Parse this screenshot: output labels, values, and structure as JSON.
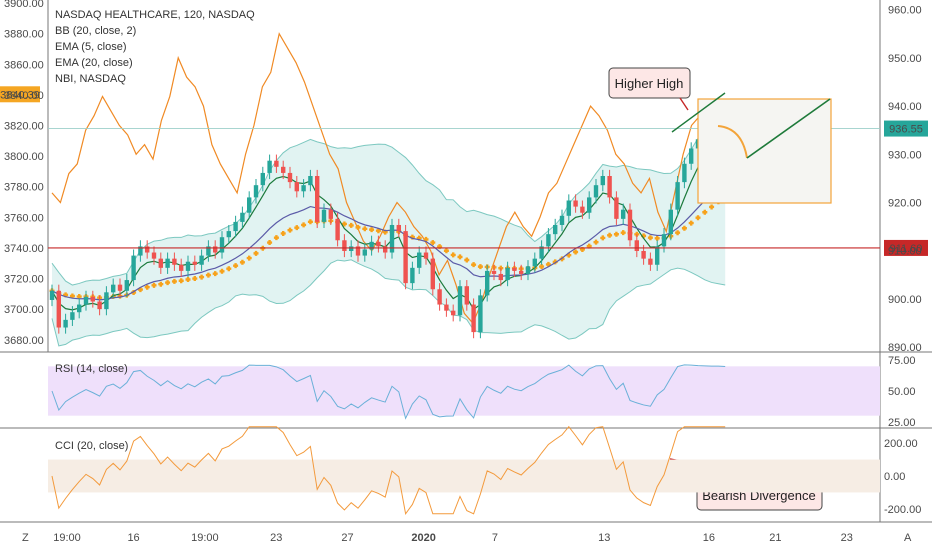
{
  "chart_data": {
    "type": "candlestick",
    "legend": [
      "NASDAQ HEALTHCARE, 120, NASDAQ",
      "BB (20, close, 2)",
      "EMA (5, close)",
      "EMA (20, close)",
      "NBI, NASDAQ"
    ],
    "left_axis": {
      "ticks": [
        3900,
        3880,
        3860,
        3840,
        3820,
        3800,
        3780,
        3760,
        3740,
        3720,
        3700,
        3680
      ],
      "labels": [
        "3900.00",
        "3880.00",
        "3860.00",
        "3840.00",
        "3820.00",
        "3800.00",
        "3780.00",
        "3760.00",
        "3740.00",
        "3720.00",
        "3700.00",
        "3680.00"
      ],
      "range": [
        3672,
        3902
      ]
    },
    "right_axis": {
      "ticks": [
        960,
        950,
        940,
        930,
        920,
        910,
        900,
        890
      ],
      "labels": [
        "960.00",
        "950.00",
        "940.00",
        "930.00",
        "920.00",
        "910.00",
        "900.00",
        "890.00"
      ],
      "range": [
        889,
        962
      ]
    },
    "price_tags": {
      "current_left": "3840.39",
      "current_right": "936.55",
      "hline_right": "911.60"
    },
    "horizontal_line": 3740,
    "x_axis": {
      "labels": [
        "19:00",
        "16",
        "19:00",
        "23",
        "27",
        "2020",
        "7",
        "13",
        "16",
        "21",
        "23"
      ],
      "positions": [
        4,
        18,
        33,
        48,
        63,
        79,
        94,
        117,
        139,
        153,
        168
      ]
    },
    "candles_close": [
      3712,
      3688,
      3693,
      3698,
      3703,
      3708,
      3705,
      3700,
      3711,
      3716,
      3712,
      3719,
      3735,
      3741,
      3737,
      3733,
      3727,
      3733,
      3729,
      3725,
      3731,
      3729,
      3735,
      3741,
      3737,
      3747,
      3751,
      3757,
      3763,
      3773,
      3781,
      3789,
      3797,
      3793,
      3789,
      3783,
      3777,
      3781,
      3787,
      3757,
      3765,
      3759,
      3745,
      3738,
      3741,
      3735,
      3739,
      3744,
      3741,
      3737,
      3755,
      3751,
      3717,
      3727,
      3737,
      3733,
      3713,
      3703,
      3699,
      3696,
      3715,
      3703,
      3685,
      3709,
      3725,
      3723,
      3719,
      3727,
      3725,
      3723,
      3728,
      3733,
      3741,
      3749,
      3755,
      3761,
      3771,
      3767,
      3763,
      3773,
      3781,
      3787,
      3773,
      3759,
      3765,
      3745,
      3738,
      3733,
      3729,
      3741,
      3749,
      3765,
      3783,
      3795,
      3805,
      3811,
      3815,
      3817,
      3819,
      3818
    ],
    "ema_orange_label": "EMA (20, close)",
    "nbi_values": [
      922,
      920,
      926,
      928,
      935,
      938,
      942,
      939,
      936,
      934,
      930,
      932,
      929,
      937,
      942,
      950,
      946,
      944,
      940,
      932,
      928,
      925,
      922,
      930,
      936,
      944,
      947,
      955,
      952,
      949,
      945,
      940,
      935,
      930,
      927,
      920,
      916,
      912,
      910,
      913,
      917,
      920,
      918,
      915,
      913,
      910,
      905,
      908,
      903,
      897,
      895,
      899,
      905,
      910,
      915,
      918,
      915,
      913,
      917,
      922,
      924,
      928,
      932,
      936,
      940,
      938,
      935,
      930,
      928,
      924,
      922,
      925,
      918,
      914,
      922,
      930,
      936,
      938,
      934,
      930,
      932
    ],
    "rsi": {
      "label": "RSI (14, close)",
      "ticks": [
        "75.00",
        "50.00",
        "25.00"
      ],
      "band": [
        30,
        70
      ]
    },
    "cci": {
      "label": "CCI (20, close)",
      "ticks": [
        "200.00",
        "0.00",
        "-200.00"
      ],
      "band": [
        -100,
        100
      ]
    },
    "annotations": {
      "higher_high": "Higher High",
      "bearish_divergence": "Bearish Divergence"
    },
    "colors": {
      "up": "#26a69a",
      "down": "#ef5350",
      "ema5": "#1b7a3c",
      "ema20": "#2a2a6e",
      "ema_cross": "#f7a21b",
      "nbi": "#f08a24",
      "bb_fill": "#e1f3f2",
      "rsi_band": "#efe0fb",
      "cci_band": "#f6ede4",
      "hline": "#c62828",
      "projection_box": "#f3a43a",
      "trend": "#1e7a3a"
    }
  },
  "ui": {
    "left_corner": "Z",
    "right_corner": "A"
  }
}
